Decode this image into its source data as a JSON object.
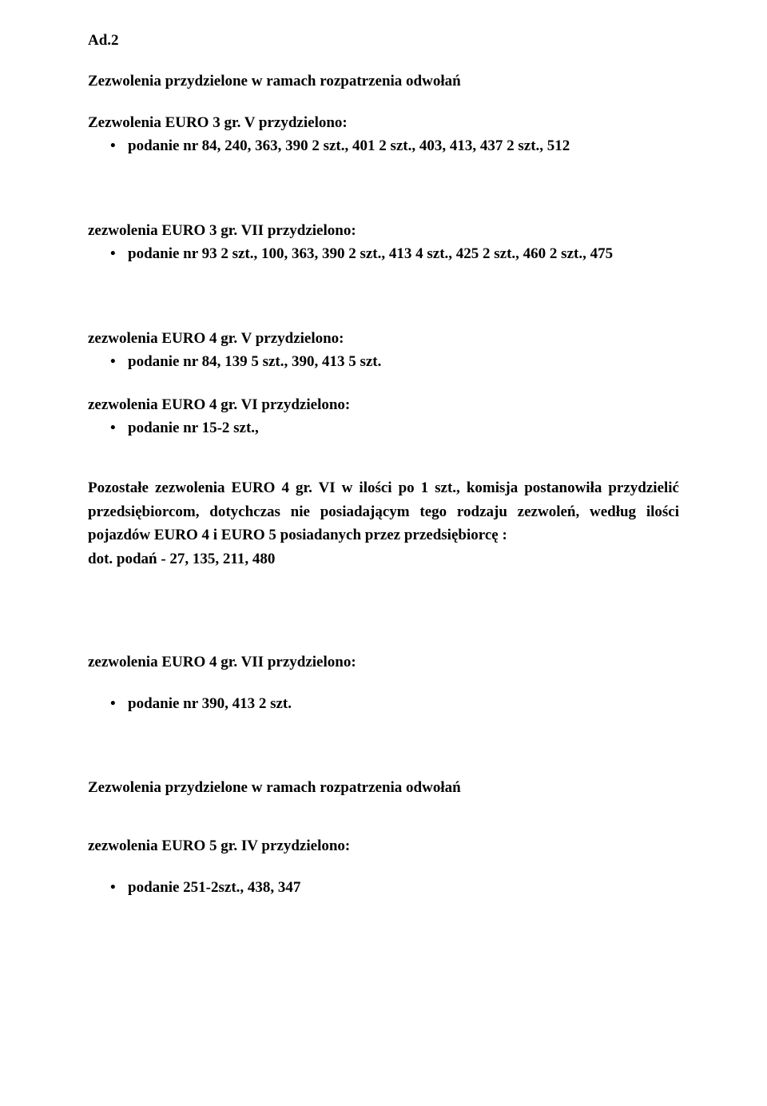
{
  "colors": {
    "text": "#000000",
    "background": "#ffffff"
  },
  "typography": {
    "font_family": "Times New Roman",
    "body_fontsize_pt": 14,
    "bold_weight": 700,
    "line_height": 1.55
  },
  "doc": {
    "ad2": "Ad.2",
    "heading_appeals_1": "Zezwolenia przydzielone w ramach rozpatrzenia odwołań",
    "sec1": {
      "title": "Zezwolenia EURO 3 gr. V  przydzielono:",
      "items": [
        "podanie nr 84, 240, 363, 390 2 szt., 401 2 szt., 403, 413, 437 2 szt., 512"
      ]
    },
    "sec2": {
      "title": "zezwolenia EURO 3 gr. VII  przydzielono:",
      "items": [
        "podanie nr 93 2 szt., 100, 363, 390 2 szt., 413 4 szt., 425 2 szt., 460 2 szt., 475"
      ]
    },
    "sec3": {
      "title": "zezwolenia EURO 4 gr. V przydzielono:",
      "items": [
        "podanie nr 84, 139 5 szt., 390, 413 5 szt."
      ]
    },
    "sec4": {
      "title": "zezwolenia EURO 4 gr. VI  przydzielono:",
      "items": [
        "podanie nr 15-2 szt.,"
      ]
    },
    "paragraph": "Pozostałe zezwolenia EURO 4 gr. VI w ilości po 1 szt., komisja postanowiła przydzielić przedsiębiorcom, dotychczas nie posiadającym tego rodzaju zezwoleń, według  ilości pojazdów EURO 4 i EURO 5 posiadanych przez przedsiębiorcę :",
    "paragraph_line2": "dot. podań - 27, 135, 211, 480",
    "sec5": {
      "title": "zezwolenia EURO 4 gr. VII  przydzielono:",
      "items": [
        "podanie nr 390, 413 2 szt."
      ]
    },
    "heading_appeals_2": "Zezwolenia przydzielone w ramach rozpatrzenia odwołań",
    "sec6": {
      "title": "zezwolenia EURO 5 gr. IV  przydzielono:",
      "items": [
        "podanie 251-2szt., 438, 347"
      ]
    }
  }
}
